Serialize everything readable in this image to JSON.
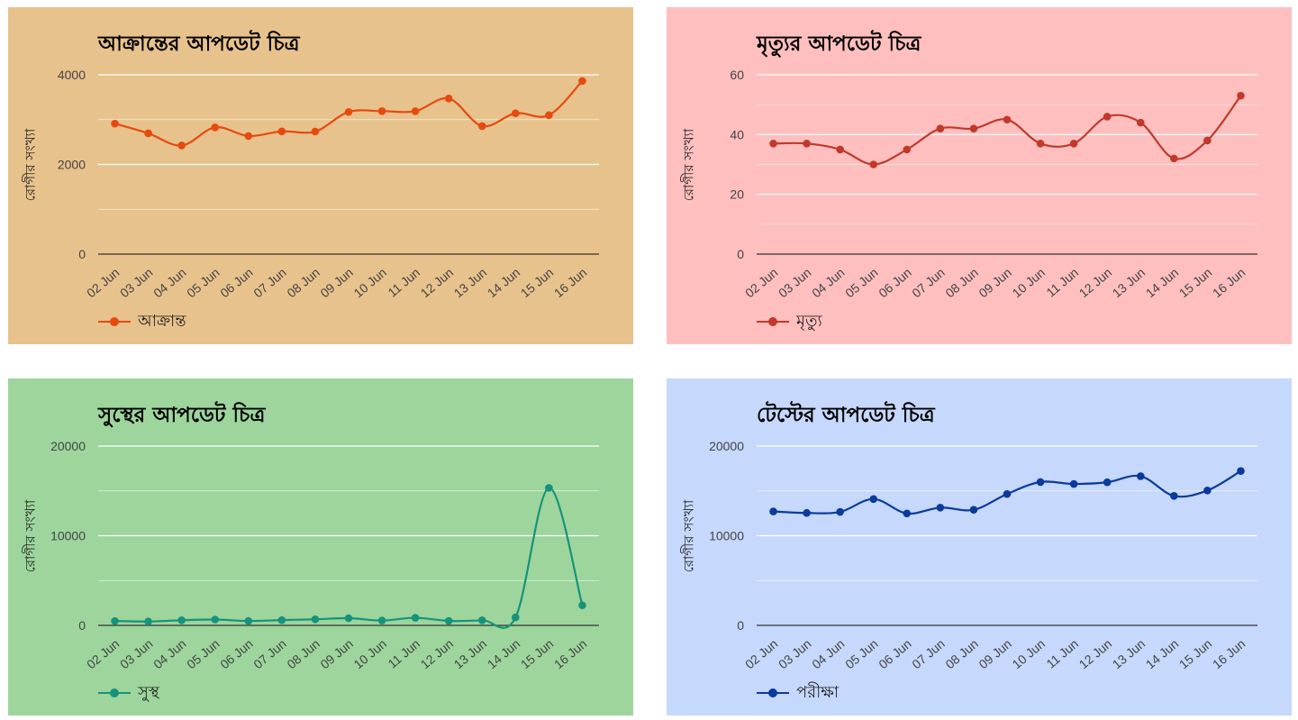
{
  "chart_data": [
    {
      "type": "line",
      "title": "আক্রান্তের আপডেট চিত্র",
      "ylabel": "রোগীর সংখ্যা",
      "xlabel": "",
      "categories": [
        "02 Jun",
        "03 Jun",
        "04 Jun",
        "05 Jun",
        "06 Jun",
        "07 Jun",
        "08 Jun",
        "09 Jun",
        "10 Jun",
        "11 Jun",
        "12 Jun",
        "13 Jun",
        "14 Jun",
        "15 Jun",
        "16 Jun"
      ],
      "ylim": [
        0,
        4000
      ],
      "yticks": [
        0,
        2000,
        4000
      ],
      "series": [
        {
          "name": "আক্রান্ত",
          "values": [
            2911,
            2695,
            2423,
            2828,
            2635,
            2738,
            2735,
            3171,
            3190,
            3187,
            3471,
            2856,
            3141,
            3099,
            3862
          ]
        }
      ],
      "legend": "bottom-left",
      "grid": true,
      "colors": {
        "background": "#e8c28c",
        "line": "#e64a0e",
        "grid": "#ffffff",
        "axis": "#333333"
      }
    },
    {
      "type": "line",
      "title": "মৃত্যুর আপডেট চিত্র",
      "ylabel": "রোগীর সংখ্যা",
      "xlabel": "",
      "categories": [
        "02 Jun",
        "03 Jun",
        "04 Jun",
        "05 Jun",
        "06 Jun",
        "07 Jun",
        "08 Jun",
        "09 Jun",
        "10 Jun",
        "11 Jun",
        "12 Jun",
        "13 Jun",
        "14 Jun",
        "15 Jun",
        "16 Jun"
      ],
      "ylim": [
        0,
        60
      ],
      "yticks": [
        0,
        20,
        40,
        60
      ],
      "series": [
        {
          "name": "মৃত্যু",
          "values": [
            37,
            37,
            35,
            30,
            35,
            42,
            42,
            45,
            37,
            37,
            46,
            44,
            32,
            38,
            53
          ]
        }
      ],
      "legend": "bottom-left",
      "grid": true,
      "colors": {
        "background": "#ffbfbf",
        "line": "#c0392b",
        "grid": "#ffffff",
        "axis": "#333333"
      }
    },
    {
      "type": "line",
      "title": "সুস্থের আপডেট চিত্র",
      "ylabel": "রোগীর সংখ্যা",
      "xlabel": "",
      "categories": [
        "02 Jun",
        "03 Jun",
        "04 Jun",
        "05 Jun",
        "06 Jun",
        "07 Jun",
        "08 Jun",
        "09 Jun",
        "10 Jun",
        "11 Jun",
        "12 Jun",
        "13 Jun",
        "14 Jun",
        "15 Jun",
        "16 Jun"
      ],
      "ylim": [
        0,
        20000
      ],
      "yticks": [
        0,
        10000,
        20000
      ],
      "series": [
        {
          "name": "সুস্থ",
          "values": [
            491,
            432,
            574,
            653,
            492,
            588,
            677,
            802,
            542,
            849,
            500,
            570,
            893,
            15337,
            2237
          ]
        }
      ],
      "legend": "bottom-left",
      "grid": true,
      "colors": {
        "background": "#9dd59d",
        "line": "#16937a",
        "grid": "#ffffff",
        "axis": "#333333"
      }
    },
    {
      "type": "line",
      "title": "টেস্টের আপডেট চিত্র",
      "ylabel": "রোগীর সংখ্যা",
      "xlabel": "",
      "categories": [
        "02 Jun",
        "03 Jun",
        "04 Jun",
        "05 Jun",
        "06 Jun",
        "07 Jun",
        "08 Jun",
        "09 Jun",
        "10 Jun",
        "11 Jun",
        "12 Jun",
        "13 Jun",
        "14 Jun",
        "15 Jun",
        "16 Jun"
      ],
      "ylim": [
        0,
        20000
      ],
      "yticks": [
        0,
        10000,
        20000
      ],
      "series": [
        {
          "name": "পরীক্ষা",
          "values": [
            12704,
            12539,
            12661,
            14088,
            12486,
            13136,
            12894,
            14651,
            15990,
            15772,
            15965,
            16638,
            14438,
            15045,
            17214
          ]
        }
      ],
      "legend": "bottom-left",
      "grid": true,
      "colors": {
        "background": "#c6d8fb",
        "line": "#0b3b9a",
        "grid": "#ffffff",
        "axis": "#333333"
      }
    }
  ]
}
